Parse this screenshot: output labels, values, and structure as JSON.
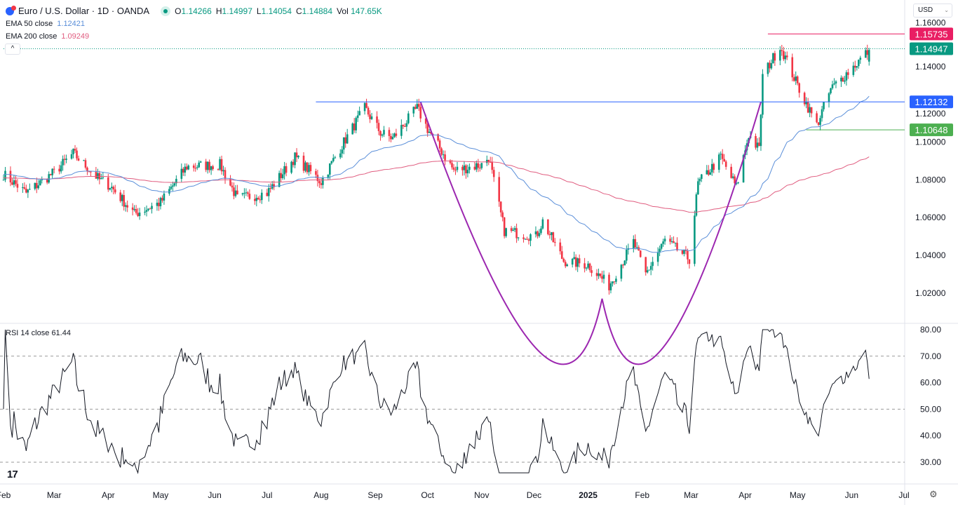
{
  "header": {
    "symbol": "Euro / U.S. Dollar · 1D · OANDA",
    "ohlc": {
      "o_label": "O",
      "open": "1.14266",
      "h_label": "H",
      "high": "1.14997",
      "l_label": "L",
      "low": "1.14054",
      "c_label": "C",
      "close": "1.14884",
      "vol_label": "Vol",
      "volume": "147.65K"
    },
    "ema50": {
      "label": "EMA 50 close",
      "value": "1.12421"
    },
    "ema200": {
      "label": "EMA 200 close",
      "value": "1.09249"
    },
    "currency": "USD"
  },
  "rsi_legend": {
    "label": "RSI 14 close",
    "value": "61.44"
  },
  "colors": {
    "up": "#089981",
    "down": "#f23645",
    "ema50": "#5b8fd9",
    "ema200": "#e05c7f",
    "cup": "#9c27b0",
    "support": "#2962ff",
    "resistance": "#e91e63",
    "low_line": "#4caf50"
  },
  "chart_data": {
    "type": "candlestick",
    "title": "Euro / U.S. Dollar · 1D · OANDA",
    "price_ticks": [
      "1.16000",
      "1.14000",
      "1.12000",
      "1.10000",
      "1.08000",
      "1.06000",
      "1.04000",
      "1.02000"
    ],
    "price_range": [
      1.005,
      1.175
    ],
    "x_ticks": [
      {
        "label": "Feb",
        "date": "2024-02-01"
      },
      {
        "label": "Mar",
        "date": "2024-03-01"
      },
      {
        "label": "Apr",
        "date": "2024-04-01"
      },
      {
        "label": "May",
        "date": "2024-05-01"
      },
      {
        "label": "Jun",
        "date": "2024-06-01"
      },
      {
        "label": "Jul",
        "date": "2024-07-01"
      },
      {
        "label": "Aug",
        "date": "2024-08-01"
      },
      {
        "label": "Sep",
        "date": "2024-09-01"
      },
      {
        "label": "Oct",
        "date": "2024-10-01"
      },
      {
        "label": "Nov",
        "date": "2024-11-01"
      },
      {
        "label": "Dec",
        "date": "2024-12-01"
      },
      {
        "label": "2025",
        "date": "2025-01-01"
      },
      {
        "label": "Feb",
        "date": "2025-02-01"
      },
      {
        "label": "Mar",
        "date": "2025-03-01"
      },
      {
        "label": "Apr",
        "date": "2025-04-01"
      },
      {
        "label": "May",
        "date": "2025-05-01"
      },
      {
        "label": "Jun",
        "date": "2025-06-01"
      },
      {
        "label": "Jul",
        "date": "2025-07-01"
      }
    ],
    "close_anchors": [
      [
        "2024-02-01",
        1.083
      ],
      [
        "2024-02-14",
        1.073
      ],
      [
        "2024-03-01",
        1.084
      ],
      [
        "2024-03-12",
        1.094
      ],
      [
        "2024-03-27",
        1.08
      ],
      [
        "2024-04-02",
        1.077
      ],
      [
        "2024-04-16",
        1.062
      ],
      [
        "2024-05-01",
        1.068
      ],
      [
        "2024-05-16",
        1.087
      ],
      [
        "2024-06-04",
        1.088
      ],
      [
        "2024-06-14",
        1.07
      ],
      [
        "2024-07-01",
        1.073
      ],
      [
        "2024-07-17",
        1.092
      ],
      [
        "2024-08-01",
        1.079
      ],
      [
        "2024-08-14",
        1.1
      ],
      [
        "2024-08-26",
        1.118
      ],
      [
        "2024-09-04",
        1.105
      ],
      [
        "2024-09-11",
        1.102
      ],
      [
        "2024-09-25",
        1.118
      ],
      [
        "2024-10-01",
        1.107
      ],
      [
        "2024-10-16",
        1.085
      ],
      [
        "2024-11-01",
        1.088
      ],
      [
        "2024-11-05",
        1.092
      ],
      [
        "2024-11-14",
        1.053
      ],
      [
        "2024-12-02",
        1.05
      ],
      [
        "2024-12-06",
        1.058
      ],
      [
        "2024-12-18",
        1.037
      ],
      [
        "2025-01-01",
        1.035
      ],
      [
        "2025-01-13",
        1.024
      ],
      [
        "2025-01-27",
        1.047
      ],
      [
        "2025-02-03",
        1.03
      ],
      [
        "2025-02-14",
        1.048
      ],
      [
        "2025-02-28",
        1.038
      ],
      [
        "2025-03-05",
        1.078
      ],
      [
        "2025-03-18",
        1.092
      ],
      [
        "2025-03-27",
        1.076
      ],
      [
        "2025-04-03",
        1.104
      ],
      [
        "2025-04-09",
        1.096
      ],
      [
        "2025-04-11",
        1.135
      ],
      [
        "2025-04-21",
        1.151
      ],
      [
        "2025-05-01",
        1.13
      ],
      [
        "2025-05-12",
        1.109
      ],
      [
        "2025-05-20",
        1.128
      ],
      [
        "2025-06-02",
        1.14
      ],
      [
        "2025-06-11",
        1.1488
      ]
    ],
    "last_candle": {
      "open": 1.14266,
      "high": 1.14997,
      "low": 1.14054,
      "close": 1.14884
    },
    "indicators": [
      {
        "name": "EMA 50 close",
        "last": 1.12421
      },
      {
        "name": "EMA 200 close",
        "last": 1.09249
      }
    ],
    "levels": [
      {
        "label": "1.15735",
        "value": 1.15735,
        "from": "2025-04-14",
        "color_key": "resistance"
      },
      {
        "label": "1.14947",
        "value": 1.14947,
        "from": "2024-02-01",
        "color_key": "current",
        "style": "dotted"
      },
      {
        "label": "1.12132",
        "value": 1.12132,
        "from": "2024-07-29",
        "color_key": "support"
      },
      {
        "label": "1.10648",
        "value": 1.10648,
        "from": "2025-05-06",
        "color_key": "low_line"
      }
    ],
    "cup_pattern": {
      "start": [
        "2024-09-27",
        1.1213
      ],
      "bottom": [
        "2025-01-09",
        1.017
      ],
      "end": [
        "2025-04-10",
        1.1213
      ]
    },
    "rsi": {
      "label": "RSI 14 close",
      "last": 61.44,
      "ticks": [
        "80.00",
        "70.00",
        "60.00",
        "50.00",
        "40.00",
        "30.00"
      ],
      "range": [
        25,
        82
      ],
      "levels": [
        70,
        50,
        30
      ]
    }
  }
}
